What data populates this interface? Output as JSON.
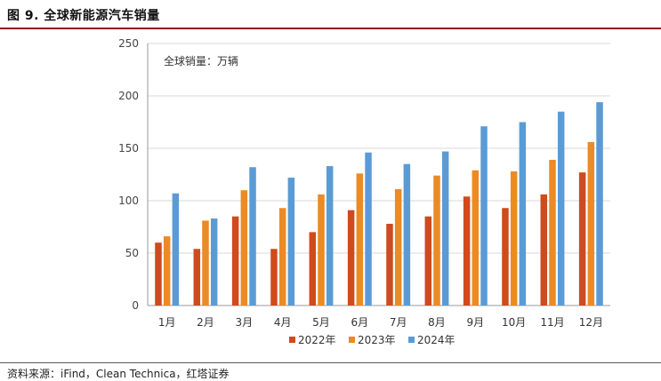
{
  "figure": {
    "title": "图 9. 全球新能源汽车销量",
    "source": "资料来源：iFind，Clean Technica，红塔证券"
  },
  "chart_data": {
    "type": "bar",
    "annotation": "全球销量：万辆",
    "categories": [
      "1月",
      "2月",
      "3月",
      "4月",
      "5月",
      "6月",
      "7月",
      "8月",
      "9月",
      "10月",
      "11月",
      "12月"
    ],
    "series": [
      {
        "name": "2022年",
        "color": "#cf4a1e",
        "values": [
          60,
          54,
          85,
          54,
          70,
          91,
          78,
          85,
          104,
          93,
          106,
          127
        ]
      },
      {
        "name": "2023年",
        "color": "#ec8a24",
        "values": [
          66,
          81,
          110,
          93,
          106,
          126,
          111,
          124,
          129,
          128,
          139,
          156
        ]
      },
      {
        "name": "2024年",
        "color": "#5b9bd5",
        "values": [
          107,
          83,
          132,
          122,
          133,
          146,
          135,
          147,
          171,
          175,
          185,
          194
        ]
      }
    ],
    "ylim": [
      0,
      250
    ],
    "yticks": [
      0,
      50,
      100,
      150,
      200,
      250
    ],
    "grid": true,
    "legend": "bottom"
  }
}
